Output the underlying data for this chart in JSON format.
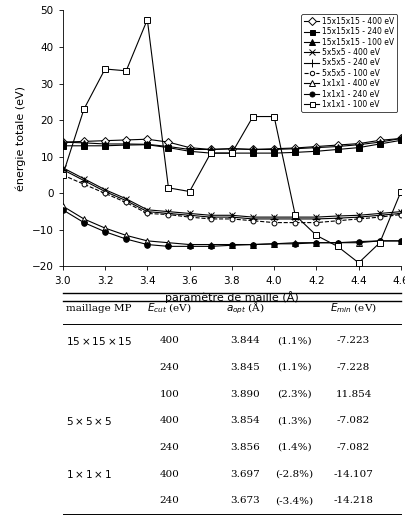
{
  "x": [
    3.0,
    3.1,
    3.2,
    3.3,
    3.4,
    3.5,
    3.6,
    3.7,
    3.8,
    3.9,
    4.0,
    4.1,
    4.2,
    4.3,
    4.4,
    4.5,
    4.6
  ],
  "series": {
    "15x15x15_400": {
      "y": [
        14.0,
        14.2,
        14.4,
        14.6,
        14.8,
        14.0,
        12.5,
        12.0,
        12.2,
        12.0,
        12.2,
        12.4,
        12.8,
        13.2,
        13.6,
        14.5,
        15.0
      ]
    },
    "15x15x15_240": {
      "y": [
        13.0,
        13.0,
        13.0,
        13.2,
        13.3,
        12.5,
        11.5,
        11.0,
        11.0,
        11.0,
        11.0,
        11.2,
        11.5,
        12.0,
        12.5,
        13.5,
        14.5
      ]
    },
    "15x15x15_100": {
      "y": [
        14.0,
        13.8,
        13.5,
        13.5,
        13.4,
        12.8,
        12.0,
        12.0,
        12.2,
        12.0,
        12.0,
        12.2,
        12.5,
        12.8,
        13.3,
        14.0,
        15.0
      ]
    },
    "5x5x5_400": {
      "y": [
        7.0,
        4.0,
        1.0,
        -1.5,
        -4.5,
        -5.0,
        -5.5,
        -6.0,
        -6.0,
        -6.5,
        -6.5,
        -6.5,
        -6.5,
        -6.2,
        -6.0,
        -5.5,
        -5.0
      ]
    },
    "5x5x5_240": {
      "y": [
        6.5,
        3.5,
        0.5,
        -2.0,
        -5.0,
        -5.5,
        -6.0,
        -6.5,
        -6.5,
        -7.0,
        -7.0,
        -7.0,
        -7.0,
        -6.8,
        -6.5,
        -6.0,
        -5.5
      ]
    },
    "5x5x5_100": {
      "y": [
        5.0,
        2.5,
        0.0,
        -2.5,
        -5.5,
        -5.8,
        -6.5,
        -7.0,
        -7.0,
        -7.5,
        -8.0,
        -8.0,
        -8.0,
        -7.5,
        -7.0,
        -6.5,
        -5.8
      ]
    },
    "1x1x1_400": {
      "y": [
        -3.5,
        -7.0,
        -9.5,
        -11.5,
        -13.0,
        -13.5,
        -14.0,
        -14.0,
        -14.0,
        -14.0,
        -13.8,
        -13.5,
        -13.5,
        -13.5,
        -13.5,
        -13.0,
        -13.0
      ]
    },
    "1x1x1_240": {
      "y": [
        -4.5,
        -8.0,
        -10.5,
        -12.5,
        -14.0,
        -14.5,
        -14.5,
        -14.5,
        -14.2,
        -14.0,
        -13.8,
        -13.8,
        -13.5,
        -13.5,
        -13.2,
        -13.0,
        -13.0
      ]
    },
    "1x1x1_100": {
      "y": [
        5.0,
        23.0,
        34.0,
        33.5,
        47.5,
        1.5,
        0.5,
        11.0,
        11.0,
        21.0,
        21.0,
        -6.0,
        -11.5,
        -14.5,
        -19.0,
        -13.5,
        0.5
      ]
    }
  },
  "legend_labels": [
    "15x15x15 - 400 eV",
    "15x15x15 - 240 eV",
    "15x15x15 - 100 eV",
    "5x5x5 - 400 eV",
    "5x5x5 - 240 eV",
    "5x5x5 - 100 eV",
    "1x1x1 - 400 eV",
    "1x1x1 - 240 eV",
    "1x1x1 - 100 eV"
  ],
  "ylabel": "énergie totale (eV)",
  "xlabel": "paramètre de maille (Å)",
  "ylim": [
    -20.0,
    50.0
  ],
  "xlim": [
    3.0,
    4.6
  ],
  "yticks": [
    -20.0,
    -10.0,
    0.0,
    10.0,
    20.0,
    30.0,
    40.0,
    50.0
  ],
  "xticks": [
    3.0,
    3.2,
    3.4,
    3.6,
    3.8,
    4.0,
    4.2,
    4.4,
    4.6
  ],
  "table_col_headers": [
    "maillage MP",
    "E_cut (eV)",
    "a_opt (A)",
    "E_min (eV)"
  ],
  "table_rows": [
    [
      "15x15x15",
      "400",
      "3.844",
      "(1.1%)",
      "-7.223"
    ],
    [
      "",
      "240",
      "3.845",
      "(1.1%)",
      "-7.228"
    ],
    [
      "",
      "100",
      "3.890",
      "(2.3%)",
      "11.854"
    ],
    [
      "5x5x5",
      "400",
      "3.854",
      "(1.3%)",
      "-7.082"
    ],
    [
      "",
      "240",
      "3.856",
      "(1.4%)",
      "-7.082"
    ],
    [
      "1x1x1",
      "400",
      "3.697",
      "(-2.8%)",
      "-14.107"
    ],
    [
      "",
      "240",
      "3.673",
      "(-3.4%)",
      "-14.218"
    ]
  ]
}
